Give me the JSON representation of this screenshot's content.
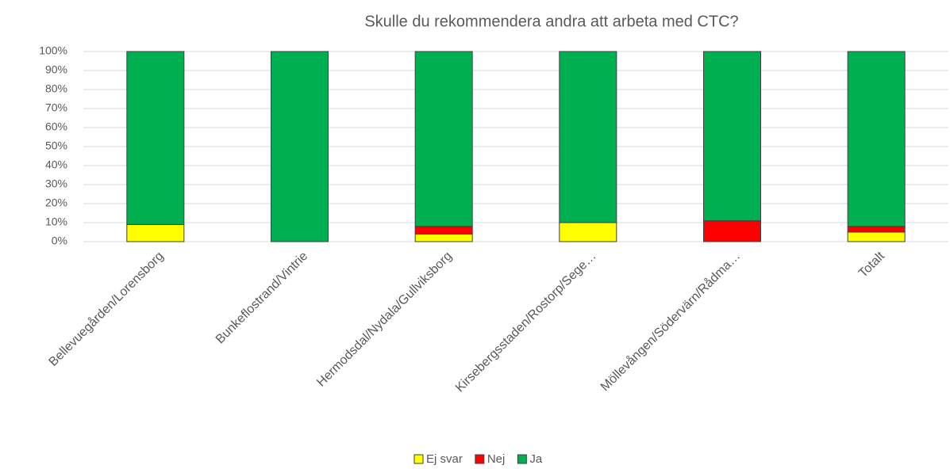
{
  "chart_data": {
    "type": "bar",
    "stacked": true,
    "title": "Skulle du rekommendera andra att arbeta med CTC?",
    "categories": [
      "Bellevuegården/Lorensborg",
      "Bunkeflostrand/Vintrie",
      "Hermodsdal/Nydala/Gullviksborg",
      "Kirsebergsstaden/Rostorp/Sege…",
      "Möllevången/Södervärn/Rådma…",
      "Totalt"
    ],
    "series": [
      {
        "name": "Ej svar",
        "color": "#ffff00",
        "values": [
          9,
          0,
          4,
          10,
          0,
          5
        ]
      },
      {
        "name": "Nej",
        "color": "#ff0000",
        "values": [
          0,
          0,
          4,
          0,
          11,
          3
        ]
      },
      {
        "name": "Ja",
        "color": "#00b050",
        "values": [
          91,
          100,
          92,
          90,
          89,
          92
        ]
      }
    ],
    "ylim": [
      0,
      100
    ],
    "yticks": [
      {
        "value": 0,
        "label": "0%"
      },
      {
        "value": 10,
        "label": "10%"
      },
      {
        "value": 20,
        "label": "20%"
      },
      {
        "value": 30,
        "label": "30%"
      },
      {
        "value": 40,
        "label": "40%"
      },
      {
        "value": 50,
        "label": "50%"
      },
      {
        "value": 60,
        "label": "60%"
      },
      {
        "value": 70,
        "label": "70%"
      },
      {
        "value": 80,
        "label": "80%"
      },
      {
        "value": 90,
        "label": "90%"
      },
      {
        "value": 100,
        "label": "100%"
      }
    ],
    "grid": true,
    "legend": "bottom"
  }
}
